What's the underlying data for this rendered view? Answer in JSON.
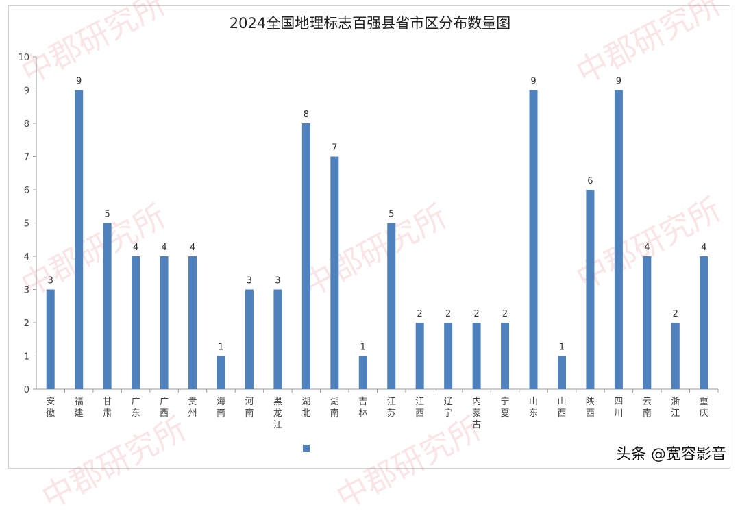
{
  "title": "2024全国地理标志百强县省市区分布数量图",
  "watermark_text": "中郡研究所",
  "credit": "头条 @宽容影音",
  "chart_data": {
    "type": "bar",
    "title": "2024全国地理标志百强县省市区分布数量图",
    "categories": [
      "安徽",
      "福建",
      "甘肃",
      "广东",
      "广西",
      "贵州",
      "海南",
      "河南",
      "黑龙江",
      "湖北",
      "湖南",
      "吉林",
      "江苏",
      "江西",
      "辽宁",
      "内蒙古",
      "宁夏",
      "山东",
      "山西",
      "陕西",
      "四川",
      "云南",
      "浙江",
      "重庆"
    ],
    "values": [
      3,
      9,
      5,
      4,
      4,
      4,
      1,
      3,
      3,
      8,
      7,
      1,
      5,
      2,
      2,
      2,
      2,
      9,
      1,
      6,
      9,
      4,
      2,
      4
    ],
    "ylim": [
      0,
      10
    ],
    "yticks": [
      0,
      1,
      2,
      3,
      4,
      5,
      6,
      7,
      8,
      9,
      10
    ],
    "bar_color": "#4F81BD",
    "data_labels": true,
    "grid": false,
    "legend": "bottom-center"
  }
}
